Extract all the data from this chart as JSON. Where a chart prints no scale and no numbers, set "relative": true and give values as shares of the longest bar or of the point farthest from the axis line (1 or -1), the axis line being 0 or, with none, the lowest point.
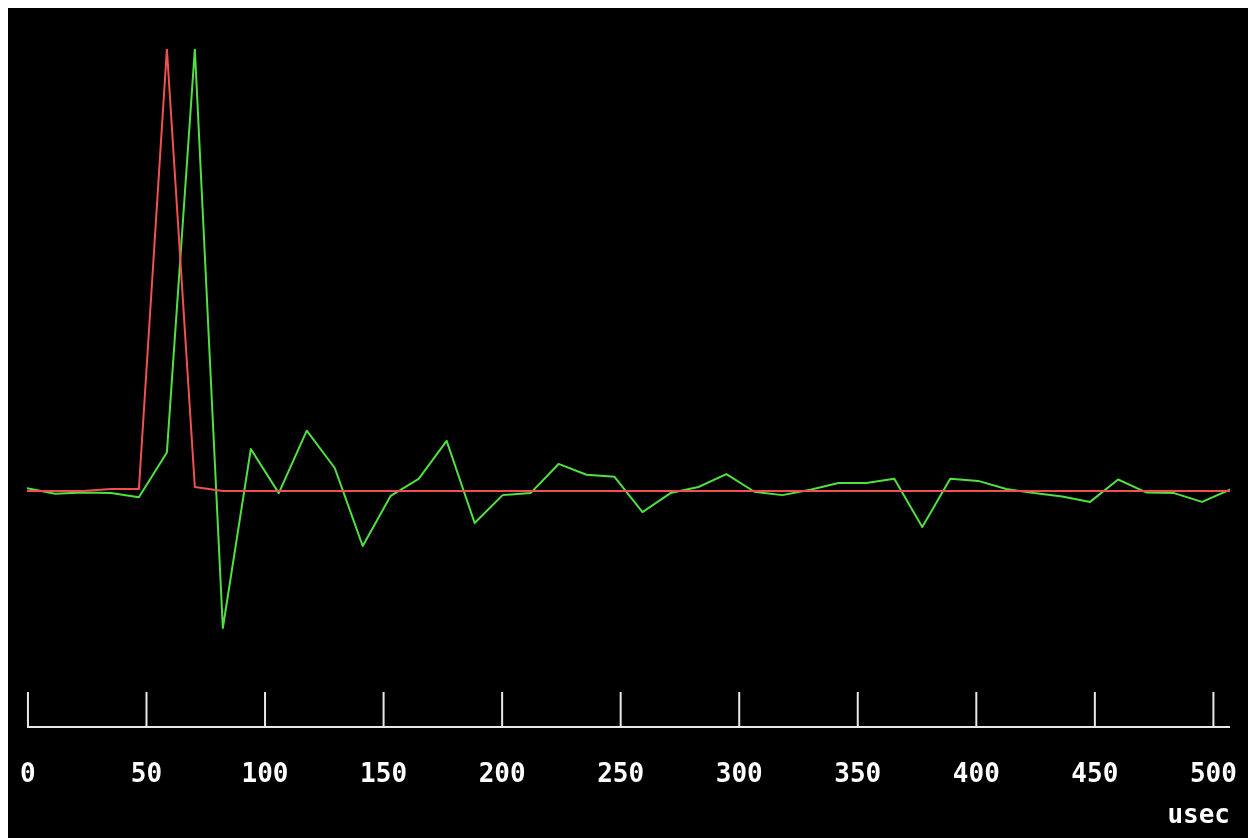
{
  "chart_data": {
    "type": "line",
    "relative": true,
    "xlabel": "usec",
    "x": [
      -0.4,
      11.4,
      23.2,
      35.0,
      46.8,
      58.6,
      70.4,
      82.2,
      94.0,
      105.8,
      117.6,
      129.4,
      141.2,
      153.0,
      164.8,
      176.6,
      188.4,
      200.2,
      212.0,
      223.8,
      235.6,
      247.4,
      259.2,
      271.0,
      282.8,
      294.6,
      306.4,
      318.2,
      330.0,
      341.8,
      353.6,
      365.4,
      377.2,
      389.0,
      400.8,
      412.6,
      424.4,
      436.2,
      448.0,
      459.8,
      471.6,
      483.4,
      495.2,
      507.0
    ],
    "series": [
      {
        "color": "#50e040",
        "values": [
          0.352,
          0.344,
          0.346,
          0.345,
          0.339,
          0.405,
          1,
          0.146,
          0.41,
          0.345,
          0.437,
          0.382,
          0.267,
          0.341,
          0.366,
          0.422,
          0.301,
          0.342,
          0.345,
          0.388,
          0.372,
          0.369,
          0.317,
          0.345,
          0.354,
          0.373,
          0.347,
          0.342,
          0.35,
          0.36,
          0.36,
          0.366,
          0.295,
          0.366,
          0.363,
          0.351,
          0.345,
          0.34,
          0.332,
          0.365,
          0.346,
          0.345,
          0.332,
          0.35
        ]
      },
      {
        "color": "#f05050",
        "values": [
          0.348,
          0.348,
          0.348,
          0.351,
          0.351,
          1,
          0.354,
          0.348,
          0.348,
          0.348,
          0.348,
          0.348,
          0.348,
          0.348,
          0.348,
          0.348,
          0.348,
          0.348,
          0.348,
          0.348,
          0.348,
          0.348,
          0.348,
          0.348,
          0.348,
          0.348,
          0.348,
          0.348,
          0.348,
          0.348,
          0.348,
          0.348,
          0.348,
          0.348,
          0.348,
          0.348,
          0.348,
          0.348,
          0.348,
          0.348,
          0.348,
          0.348,
          0.348,
          0.348
        ]
      }
    ],
    "xlim": [
      -0.4,
      507.0
    ],
    "xticks": [
      0,
      50,
      100,
      150,
      200,
      250,
      300,
      350,
      400,
      450,
      500
    ]
  }
}
